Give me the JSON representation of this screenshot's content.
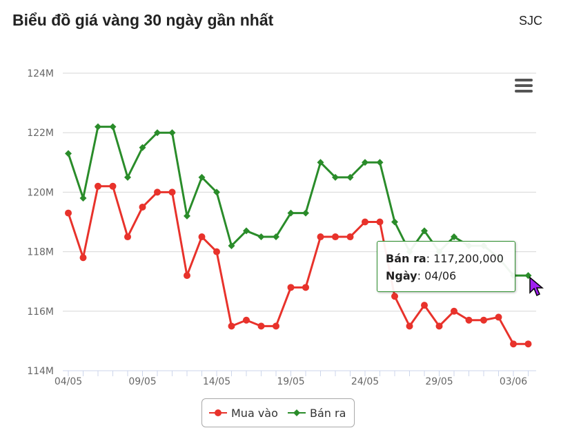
{
  "header": {
    "title": "Biểu đồ giá vàng 30 ngày gần nhất",
    "source": "SJC"
  },
  "tooltip": {
    "series_label": "Bán ra",
    "value": "117,200,000",
    "date_label": "Ngày",
    "date": "04/06"
  },
  "icons": {
    "menu": "hamburger-menu-icon",
    "cursor": "mouse-pointer-icon"
  },
  "chart_data": {
    "type": "line",
    "title": "Biểu đồ giá vàng 30 ngày gần nhất",
    "xlabel": "",
    "ylabel": "",
    "x": [
      "04/05",
      "05/05",
      "06/05",
      "07/05",
      "08/05",
      "09/05",
      "10/05",
      "11/05",
      "12/05",
      "13/05",
      "14/05",
      "15/05",
      "16/05",
      "17/05",
      "18/05",
      "19/05",
      "20/05",
      "21/05",
      "22/05",
      "23/05",
      "24/05",
      "25/05",
      "26/05",
      "27/05",
      "28/05",
      "29/05",
      "30/05",
      "31/05",
      "01/06",
      "02/06",
      "03/06",
      "04/06"
    ],
    "x_tick_labels": [
      "04/05",
      "09/05",
      "14/05",
      "19/05",
      "24/05",
      "29/05",
      "03/06"
    ],
    "y_tick_labels": [
      "114M",
      "116M",
      "118M",
      "120M",
      "122M",
      "124M"
    ],
    "ylim": [
      114,
      124
    ],
    "y_unit": "M",
    "grid": true,
    "legend_position": "bottom-center",
    "series": [
      {
        "name": "Mua vào",
        "color": "#e8322b",
        "marker": "circle",
        "values": [
          119.3,
          117.8,
          120.2,
          120.2,
          118.5,
          119.5,
          120.0,
          120.0,
          117.2,
          118.5,
          118.0,
          115.5,
          115.7,
          115.5,
          115.5,
          116.8,
          116.8,
          118.5,
          118.5,
          118.5,
          119.0,
          119.0,
          116.5,
          115.5,
          116.2,
          115.5,
          116.0,
          115.7,
          115.7,
          115.8,
          114.9,
          114.9
        ]
      },
      {
        "name": "Bán ra",
        "color": "#2a8c2a",
        "marker": "diamond",
        "values": [
          121.3,
          119.8,
          122.2,
          122.2,
          120.5,
          121.5,
          122.0,
          122.0,
          119.2,
          120.5,
          120.0,
          118.2,
          118.7,
          118.5,
          118.5,
          119.3,
          119.3,
          121.0,
          120.5,
          120.5,
          121.0,
          121.0,
          119.0,
          118.0,
          118.7,
          118.0,
          118.5,
          118.2,
          118.2,
          117.8,
          117.2,
          117.2
        ]
      }
    ]
  }
}
